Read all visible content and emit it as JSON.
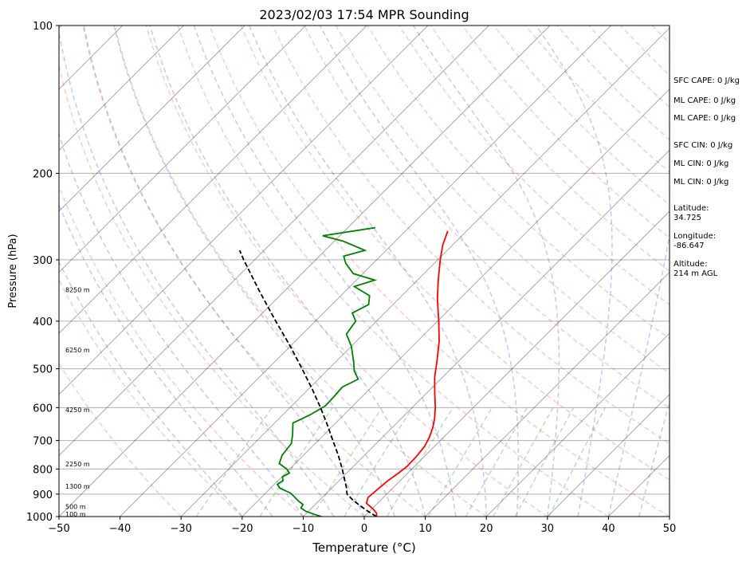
{
  "chart_data": {
    "type": "line",
    "title": "2023/02/03 17:54 MPR Sounding",
    "xlabel": "Temperature (°C)",
    "ylabel": "Pressure (hPa)",
    "xlim": [
      -50,
      50
    ],
    "ylim": [
      1000,
      100
    ],
    "y_scale": "log",
    "grid": true,
    "x_ticks": [
      "−50",
      "−40",
      "−30",
      "−20",
      "−10",
      "0",
      "10",
      "20",
      "30",
      "40",
      "50"
    ],
    "y_ticks": [
      100,
      200,
      300,
      400,
      500,
      600,
      700,
      800,
      900,
      1000
    ],
    "series": [
      {
        "role": "temperature",
        "color": "#ff0000",
        "points": [
          {
            "p": 1000,
            "t": 2.0
          },
          {
            "p": 985,
            "t": 1.5
          },
          {
            "p": 965,
            "t": 0.2
          },
          {
            "p": 940,
            "t": -1.8
          },
          {
            "p": 915,
            "t": -2.5
          },
          {
            "p": 900,
            "t": -2.4
          },
          {
            "p": 870,
            "t": -2.2
          },
          {
            "p": 845,
            "t": -2.0
          },
          {
            "p": 815,
            "t": -1.5
          },
          {
            "p": 790,
            "t": -1.2
          },
          {
            "p": 755,
            "t": -1.3
          },
          {
            "p": 720,
            "t": -1.6
          },
          {
            "p": 690,
            "t": -2.3
          },
          {
            "p": 660,
            "t": -3.3
          },
          {
            "p": 630,
            "t": -4.6
          },
          {
            "p": 600,
            "t": -6.2
          },
          {
            "p": 560,
            "t": -8.7
          },
          {
            "p": 520,
            "t": -11.3
          },
          {
            "p": 480,
            "t": -13.7
          },
          {
            "p": 440,
            "t": -16.4
          },
          {
            "p": 400,
            "t": -19.8
          },
          {
            "p": 360,
            "t": -23.7
          },
          {
            "p": 330,
            "t": -26.6
          },
          {
            "p": 300,
            "t": -29.6
          },
          {
            "p": 280,
            "t": -31.6
          },
          {
            "p": 262,
            "t": -33.1
          }
        ]
      },
      {
        "role": "dewpoint",
        "color": "#008000",
        "points": [
          {
            "p": 1000,
            "t": -7.0
          },
          {
            "p": 990,
            "t": -8.5
          },
          {
            "p": 975,
            "t": -10.5
          },
          {
            "p": 960,
            "t": -11.8
          },
          {
            "p": 945,
            "t": -12.0
          },
          {
            "p": 930,
            "t": -13.3
          },
          {
            "p": 910,
            "t": -14.8
          },
          {
            "p": 895,
            "t": -16.0
          },
          {
            "p": 875,
            "t": -18.5
          },
          {
            "p": 860,
            "t": -19.5
          },
          {
            "p": 845,
            "t": -19.2
          },
          {
            "p": 830,
            "t": -19.9
          },
          {
            "p": 815,
            "t": -19.4
          },
          {
            "p": 800,
            "t": -20.5
          },
          {
            "p": 780,
            "t": -22.6
          },
          {
            "p": 750,
            "t": -23.5
          },
          {
            "p": 710,
            "t": -23.9
          },
          {
            "p": 680,
            "t": -25.2
          },
          {
            "p": 645,
            "t": -27.0
          },
          {
            "p": 620,
            "t": -25.5
          },
          {
            "p": 595,
            "t": -24.5
          },
          {
            "p": 570,
            "t": -24.6
          },
          {
            "p": 545,
            "t": -24.8
          },
          {
            "p": 525,
            "t": -23.5
          },
          {
            "p": 505,
            "t": -25.5
          },
          {
            "p": 485,
            "t": -27.0
          },
          {
            "p": 450,
            "t": -30.0
          },
          {
            "p": 425,
            "t": -32.8
          },
          {
            "p": 400,
            "t": -33.4
          },
          {
            "p": 385,
            "t": -35.3
          },
          {
            "p": 370,
            "t": -34.0
          },
          {
            "p": 355,
            "t": -35.3
          },
          {
            "p": 340,
            "t": -39.3
          },
          {
            "p": 330,
            "t": -37.0
          },
          {
            "p": 320,
            "t": -41.6
          },
          {
            "p": 305,
            "t": -44.5
          },
          {
            "p": 295,
            "t": -46.0
          },
          {
            "p": 287,
            "t": -43.5
          },
          {
            "p": 275,
            "t": -48.5
          },
          {
            "p": 268,
            "t": -52.8
          },
          {
            "p": 258,
            "t": -45.5
          }
        ]
      },
      {
        "role": "parcel-profile",
        "color": "#000000",
        "style": "dashed",
        "points": [
          {
            "p": 1000,
            "t": 2.0
          },
          {
            "p": 975,
            "t": -0.3
          },
          {
            "p": 950,
            "t": -2.5
          },
          {
            "p": 925,
            "t": -4.6
          },
          {
            "p": 900,
            "t": -6.5
          },
          {
            "p": 870,
            "t": -7.8
          },
          {
            "p": 850,
            "t": -8.8
          },
          {
            "p": 800,
            "t": -11.4
          },
          {
            "p": 750,
            "t": -14.3
          },
          {
            "p": 700,
            "t": -17.6
          },
          {
            "p": 650,
            "t": -21.1
          },
          {
            "p": 600,
            "t": -25.0
          },
          {
            "p": 550,
            "t": -29.4
          },
          {
            "p": 500,
            "t": -34.4
          },
          {
            "p": 450,
            "t": -40.0
          },
          {
            "p": 400,
            "t": -46.5
          },
          {
            "p": 350,
            "t": -53.7
          },
          {
            "p": 300,
            "t": -61.8
          },
          {
            "p": 287,
            "t": -64.0
          }
        ]
      }
    ],
    "height_labels": [
      {
        "p": 988,
        "text": "100 m"
      },
      {
        "p": 955,
        "text": "500 m"
      },
      {
        "p": 867,
        "text": "1300 m"
      },
      {
        "p": 781,
        "text": "2250 m"
      },
      {
        "p": 606,
        "text": "4250 m"
      },
      {
        "p": 458,
        "text": "6250 m"
      },
      {
        "p": 345,
        "text": "8250 m"
      }
    ],
    "annotations": [
      "SFC CAPE: 0 J/kg",
      "ML CAPE: 0 J/kg",
      "ML CAPE: 0 J/kg",
      "SFC CIN: 0 J/kg",
      "ML CIN: 0 J/kg",
      "ML CIN: 0 J/kg",
      "Latitude:",
      "34.725",
      "Longitude:",
      "-86.647",
      "Altitude:",
      "214 m AGL"
    ],
    "colors": {
      "isotherm": "#000000",
      "dry_adiabat": "#ff6060",
      "moist_adiabat": "#4040ff",
      "mixing_ratio": "#50b050",
      "isobar": "#b0b0b0"
    }
  }
}
